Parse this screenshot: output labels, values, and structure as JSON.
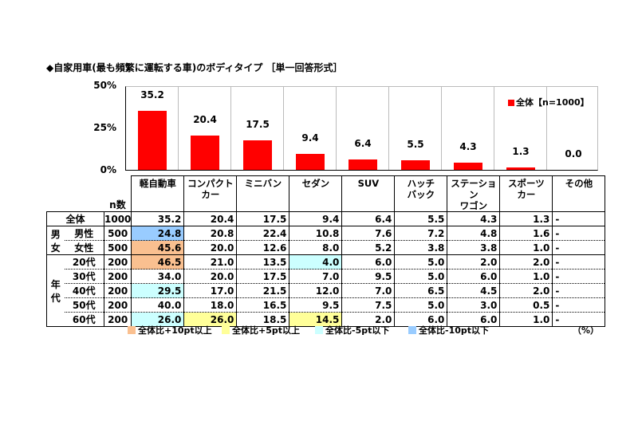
{
  "title": "◆自家用車(最も頻繁に運転する車)のボディタイプ ［単一回答形式］",
  "chart_data": {
    "type": "bar",
    "title": "自家用車(最も頻繁に運転する車)のボディタイプ [単一回答形式]",
    "categories": [
      "軽自動車",
      "コンパクトカー",
      "ミニバン",
      "セダン",
      "SUV",
      "ハッチバック",
      "ステーションワゴン",
      "スポーツカー",
      "その他"
    ],
    "series": [
      {
        "name": "全体【n=1000】",
        "values": [
          35.2,
          20.4,
          17.5,
          9.4,
          6.4,
          5.5,
          4.3,
          1.3,
          0.0
        ],
        "color": "#ff0000"
      }
    ],
    "xlabel": "",
    "ylabel": "",
    "ylim": [
      0,
      50
    ],
    "yticks": [
      "50%",
      "25%",
      "0%"
    ],
    "grid": "vertical",
    "legend_position": "top-right"
  },
  "chart": {
    "yticks": [
      "50%",
      "25%",
      "0%"
    ],
    "legend": "全体【n=1000】",
    "bar_labels": [
      "35.2",
      "20.4",
      "17.5",
      "9.4",
      "6.4",
      "5.5",
      "4.3",
      "1.3",
      "0.0"
    ]
  },
  "table": {
    "n_header": "n数",
    "columns": [
      [
        "軽自動車",
        ""
      ],
      [
        "コンパクト",
        "カー"
      ],
      [
        "ミニバン",
        ""
      ],
      [
        "セダン",
        ""
      ],
      [
        "SUV",
        ""
      ],
      [
        "ハッチ",
        "バック"
      ],
      [
        "ステーション",
        "ワゴン"
      ],
      [
        "スポーツ",
        "カー"
      ],
      [
        "その他",
        ""
      ]
    ],
    "groups": {
      "gender": [
        "男",
        "女"
      ],
      "age": [
        "年",
        "代"
      ]
    },
    "rows": [
      {
        "label": "全体",
        "n": "1000",
        "values": [
          "35.2",
          "20.4",
          "17.5",
          "9.4",
          "6.4",
          "5.5",
          "4.3",
          "1.3",
          "-"
        ],
        "hl": [
          "",
          "",
          "",
          "",
          "",
          "",
          "",
          "",
          ""
        ]
      },
      {
        "label": "男性",
        "n": "500",
        "values": [
          "24.8",
          "20.8",
          "22.4",
          "10.8",
          "7.6",
          "7.2",
          "4.8",
          "1.6",
          "-"
        ],
        "hl": [
          "m10",
          "",
          "",
          "",
          "",
          "",
          "",
          "",
          ""
        ]
      },
      {
        "label": "女性",
        "n": "500",
        "values": [
          "45.6",
          "20.0",
          "12.6",
          "8.0",
          "5.2",
          "3.8",
          "3.8",
          "1.0",
          "-"
        ],
        "hl": [
          "p10",
          "",
          "",
          "",
          "",
          "",
          "",
          "",
          ""
        ]
      },
      {
        "label": "20代",
        "n": "200",
        "values": [
          "46.5",
          "21.0",
          "13.5",
          "4.0",
          "6.0",
          "5.0",
          "2.0",
          "2.0",
          "-"
        ],
        "hl": [
          "p10",
          "",
          "",
          "m5",
          "",
          "",
          "",
          "",
          ""
        ]
      },
      {
        "label": "30代",
        "n": "200",
        "values": [
          "34.0",
          "20.0",
          "17.5",
          "7.0",
          "9.5",
          "5.0",
          "6.0",
          "1.0",
          "-"
        ],
        "hl": [
          "",
          "",
          "",
          "",
          "",
          "",
          "",
          "",
          ""
        ]
      },
      {
        "label": "40代",
        "n": "200",
        "values": [
          "29.5",
          "17.0",
          "21.5",
          "12.0",
          "7.0",
          "6.5",
          "4.5",
          "2.0",
          "-"
        ],
        "hl": [
          "m5",
          "",
          "",
          "",
          "",
          "",
          "",
          "",
          ""
        ]
      },
      {
        "label": "50代",
        "n": "200",
        "values": [
          "40.0",
          "18.0",
          "16.5",
          "9.5",
          "7.5",
          "5.0",
          "3.0",
          "0.5",
          "-"
        ],
        "hl": [
          "",
          "",
          "",
          "",
          "",
          "",
          "",
          "",
          ""
        ]
      },
      {
        "label": "60代",
        "n": "200",
        "values": [
          "26.0",
          "26.0",
          "18.5",
          "14.5",
          "2.0",
          "6.0",
          "6.0",
          "1.0",
          "-"
        ],
        "hl": [
          "m5",
          "p5",
          "",
          "p5",
          "",
          "",
          "",
          "",
          ""
        ]
      }
    ]
  },
  "color_legend": [
    {
      "label": "全体比+10pt以上",
      "color": "#fac090"
    },
    {
      "label": "全体比+5pt以上",
      "color": "#ffff99"
    },
    {
      "label": "全体比-5pt以下",
      "color": "#ccffff"
    },
    {
      "label": "全体比-10pt以下",
      "color": "#99ccff"
    }
  ],
  "unit": "（%）"
}
